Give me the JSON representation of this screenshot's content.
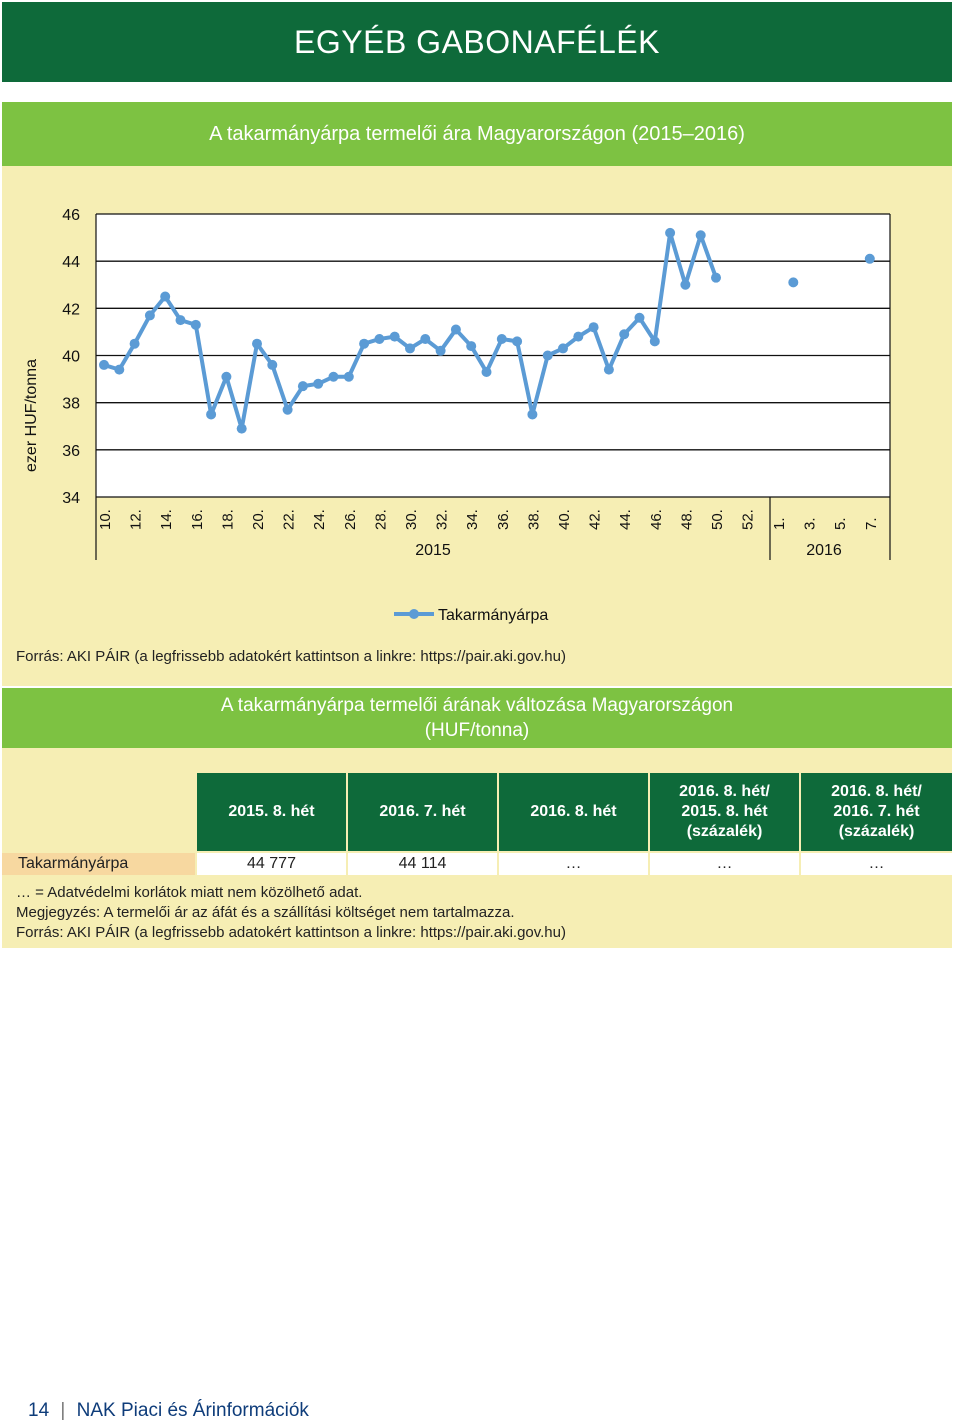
{
  "header": {
    "title": "EGYÉB GABONAFÉLÉK"
  },
  "chart_section": {
    "title": "A takarmányárpa termelői ára Magyarországon (2015–2016)",
    "source": "Forrás: AKI PÁIR (a legfrissebb adatokért kattintson a linkre: https://pair.aki.gov.hu)"
  },
  "chart_data": {
    "type": "line",
    "ylabel": "ezer HUF/tonna",
    "ylim": [
      34,
      46
    ],
    "yticks": [
      34,
      36,
      38,
      40,
      42,
      44,
      46
    ],
    "x_tick_labels_2015": [
      "10.",
      "12.",
      "14.",
      "16.",
      "18.",
      "20.",
      "22.",
      "24.",
      "26.",
      "28.",
      "30.",
      "32.",
      "34.",
      "36.",
      "38.",
      "40.",
      "42.",
      "44.",
      "46.",
      "48.",
      "50.",
      "52."
    ],
    "x_tick_labels_2016": [
      "1.",
      "3.",
      "5.",
      "7."
    ],
    "year_labels": [
      "2015",
      "2016"
    ],
    "grid": "horizontal",
    "legend_position": "bottom",
    "series": [
      {
        "name": "Takarmányárpa",
        "color": "#5b9bd5",
        "points": [
          {
            "year": 2015,
            "week": 10,
            "value": 39.6
          },
          {
            "year": 2015,
            "week": 11,
            "value": 39.4
          },
          {
            "year": 2015,
            "week": 12,
            "value": 40.5
          },
          {
            "year": 2015,
            "week": 13,
            "value": 41.7
          },
          {
            "year": 2015,
            "week": 14,
            "value": 42.5
          },
          {
            "year": 2015,
            "week": 15,
            "value": 41.5
          },
          {
            "year": 2015,
            "week": 16,
            "value": 41.3
          },
          {
            "year": 2015,
            "week": 17,
            "value": 37.5
          },
          {
            "year": 2015,
            "week": 18,
            "value": 39.1
          },
          {
            "year": 2015,
            "week": 19,
            "value": 36.9
          },
          {
            "year": 2015,
            "week": 20,
            "value": 40.5
          },
          {
            "year": 2015,
            "week": 21,
            "value": 39.6
          },
          {
            "year": 2015,
            "week": 22,
            "value": 37.7
          },
          {
            "year": 2015,
            "week": 23,
            "value": 38.7
          },
          {
            "year": 2015,
            "week": 24,
            "value": 38.8
          },
          {
            "year": 2015,
            "week": 25,
            "value": 39.1
          },
          {
            "year": 2015,
            "week": 26,
            "value": 39.1
          },
          {
            "year": 2015,
            "week": 27,
            "value": 40.5
          },
          {
            "year": 2015,
            "week": 28,
            "value": 40.7
          },
          {
            "year": 2015,
            "week": 29,
            "value": 40.8
          },
          {
            "year": 2015,
            "week": 30,
            "value": 40.3
          },
          {
            "year": 2015,
            "week": 31,
            "value": 40.7
          },
          {
            "year": 2015,
            "week": 32,
            "value": 40.2
          },
          {
            "year": 2015,
            "week": 33,
            "value": 41.1
          },
          {
            "year": 2015,
            "week": 34,
            "value": 40.4
          },
          {
            "year": 2015,
            "week": 35,
            "value": 39.3
          },
          {
            "year": 2015,
            "week": 36,
            "value": 40.7
          },
          {
            "year": 2015,
            "week": 37,
            "value": 40.6
          },
          {
            "year": 2015,
            "week": 38,
            "value": 37.5
          },
          {
            "year": 2015,
            "week": 39,
            "value": 40.0
          },
          {
            "year": 2015,
            "week": 40,
            "value": 40.3
          },
          {
            "year": 2015,
            "week": 41,
            "value": 40.8
          },
          {
            "year": 2015,
            "week": 42,
            "value": 41.2
          },
          {
            "year": 2015,
            "week": 43,
            "value": 39.4
          },
          {
            "year": 2015,
            "week": 44,
            "value": 40.9
          },
          {
            "year": 2015,
            "week": 45,
            "value": 41.6
          },
          {
            "year": 2015,
            "week": 46,
            "value": 40.6
          },
          {
            "year": 2015,
            "week": 47,
            "value": 45.2
          },
          {
            "year": 2015,
            "week": 48,
            "value": 43.0
          },
          {
            "year": 2015,
            "week": 49,
            "value": 45.1
          },
          {
            "year": 2015,
            "week": 50,
            "value": 43.3
          },
          {
            "year": 2016,
            "week": 2,
            "value": 43.1
          },
          {
            "year": 2016,
            "week": 7,
            "value": 44.1
          }
        ]
      }
    ]
  },
  "table_section": {
    "title_line1": "A takarmányárpa termelői árának változása Magyarországon",
    "title_line2": "(HUF/tonna)",
    "headers": [
      [
        "2015. 8. hét"
      ],
      [
        "2016. 7. hét"
      ],
      [
        "2016. 8. hét"
      ],
      [
        "2016. 8. hét/",
        "2015. 8. hét",
        "(százalék)"
      ],
      [
        "2016. 8. hét/",
        "2016. 7. hét",
        "(százalék)"
      ]
    ],
    "row_label": "Takarmányárpa",
    "row_values": [
      "44 777",
      "44 114",
      "…",
      "…",
      "…"
    ],
    "notes": [
      "… = Adatvédelmi korlátok miatt nem közölhető adat.",
      "Megjegyzés: A termelői ár az áfát és a szállítási költséget nem tartalmazza.",
      "Forrás: AKI PÁIR (a legfrissebb adatokért kattintson a linkre: https://pair.aki.gov.hu)"
    ]
  },
  "footer": {
    "page_number": "14",
    "separator": "|",
    "publication": "NAK Piaci és Árinformációk"
  }
}
